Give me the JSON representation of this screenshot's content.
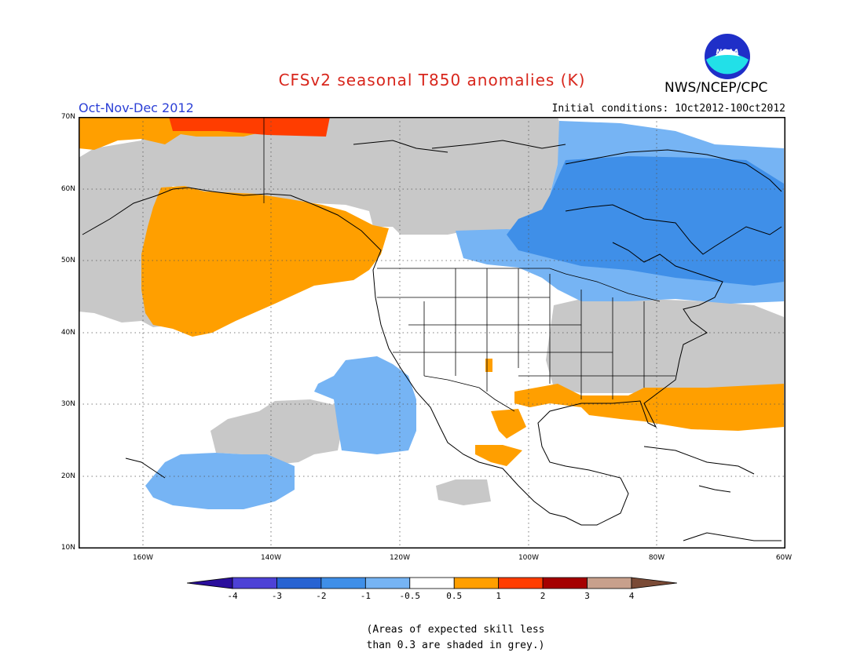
{
  "title": "CFSv2 seasonal T850 anomalies (K)",
  "organization": "NWS/NCEP/CPC",
  "logo_text": "NOAA",
  "season": "Oct-Nov-Dec 2012",
  "initial_conditions": "Initial conditions: 1Oct2012-10Oct2012",
  "lat_labels": [
    "70N",
    "60N",
    "50N",
    "40N",
    "30N",
    "20N",
    "10N"
  ],
  "lon_labels": [
    "160W",
    "140W",
    "120W",
    "100W",
    "80W",
    "60W"
  ],
  "map_extent": {
    "lon": [
      -170,
      -60
    ],
    "lat": [
      10,
      70
    ]
  },
  "colorbar": {
    "labels": [
      "-4",
      "-3",
      "-2",
      "-1",
      "-0.5",
      "0.5",
      "1",
      "2",
      "3",
      "4"
    ],
    "colors": [
      "#2a0e9c",
      "#4d41d6",
      "#2763d2",
      "#3f8fe8",
      "#76b4f4",
      "#ffffff",
      "#ff9f00",
      "#ff3d00",
      "#a50000",
      "#c8a08c",
      "#7a4a36"
    ]
  },
  "shading": {
    "skill_mask": "#c8c8c8",
    "cool_light": "#76b4f4",
    "cool": "#3f8fe8",
    "warm": "#ff9f00",
    "warm_strong": "#ff3d00"
  },
  "note_line1": "(Areas of expected skill less",
  "note_line2": "than 0.3 are shaded in grey.)"
}
